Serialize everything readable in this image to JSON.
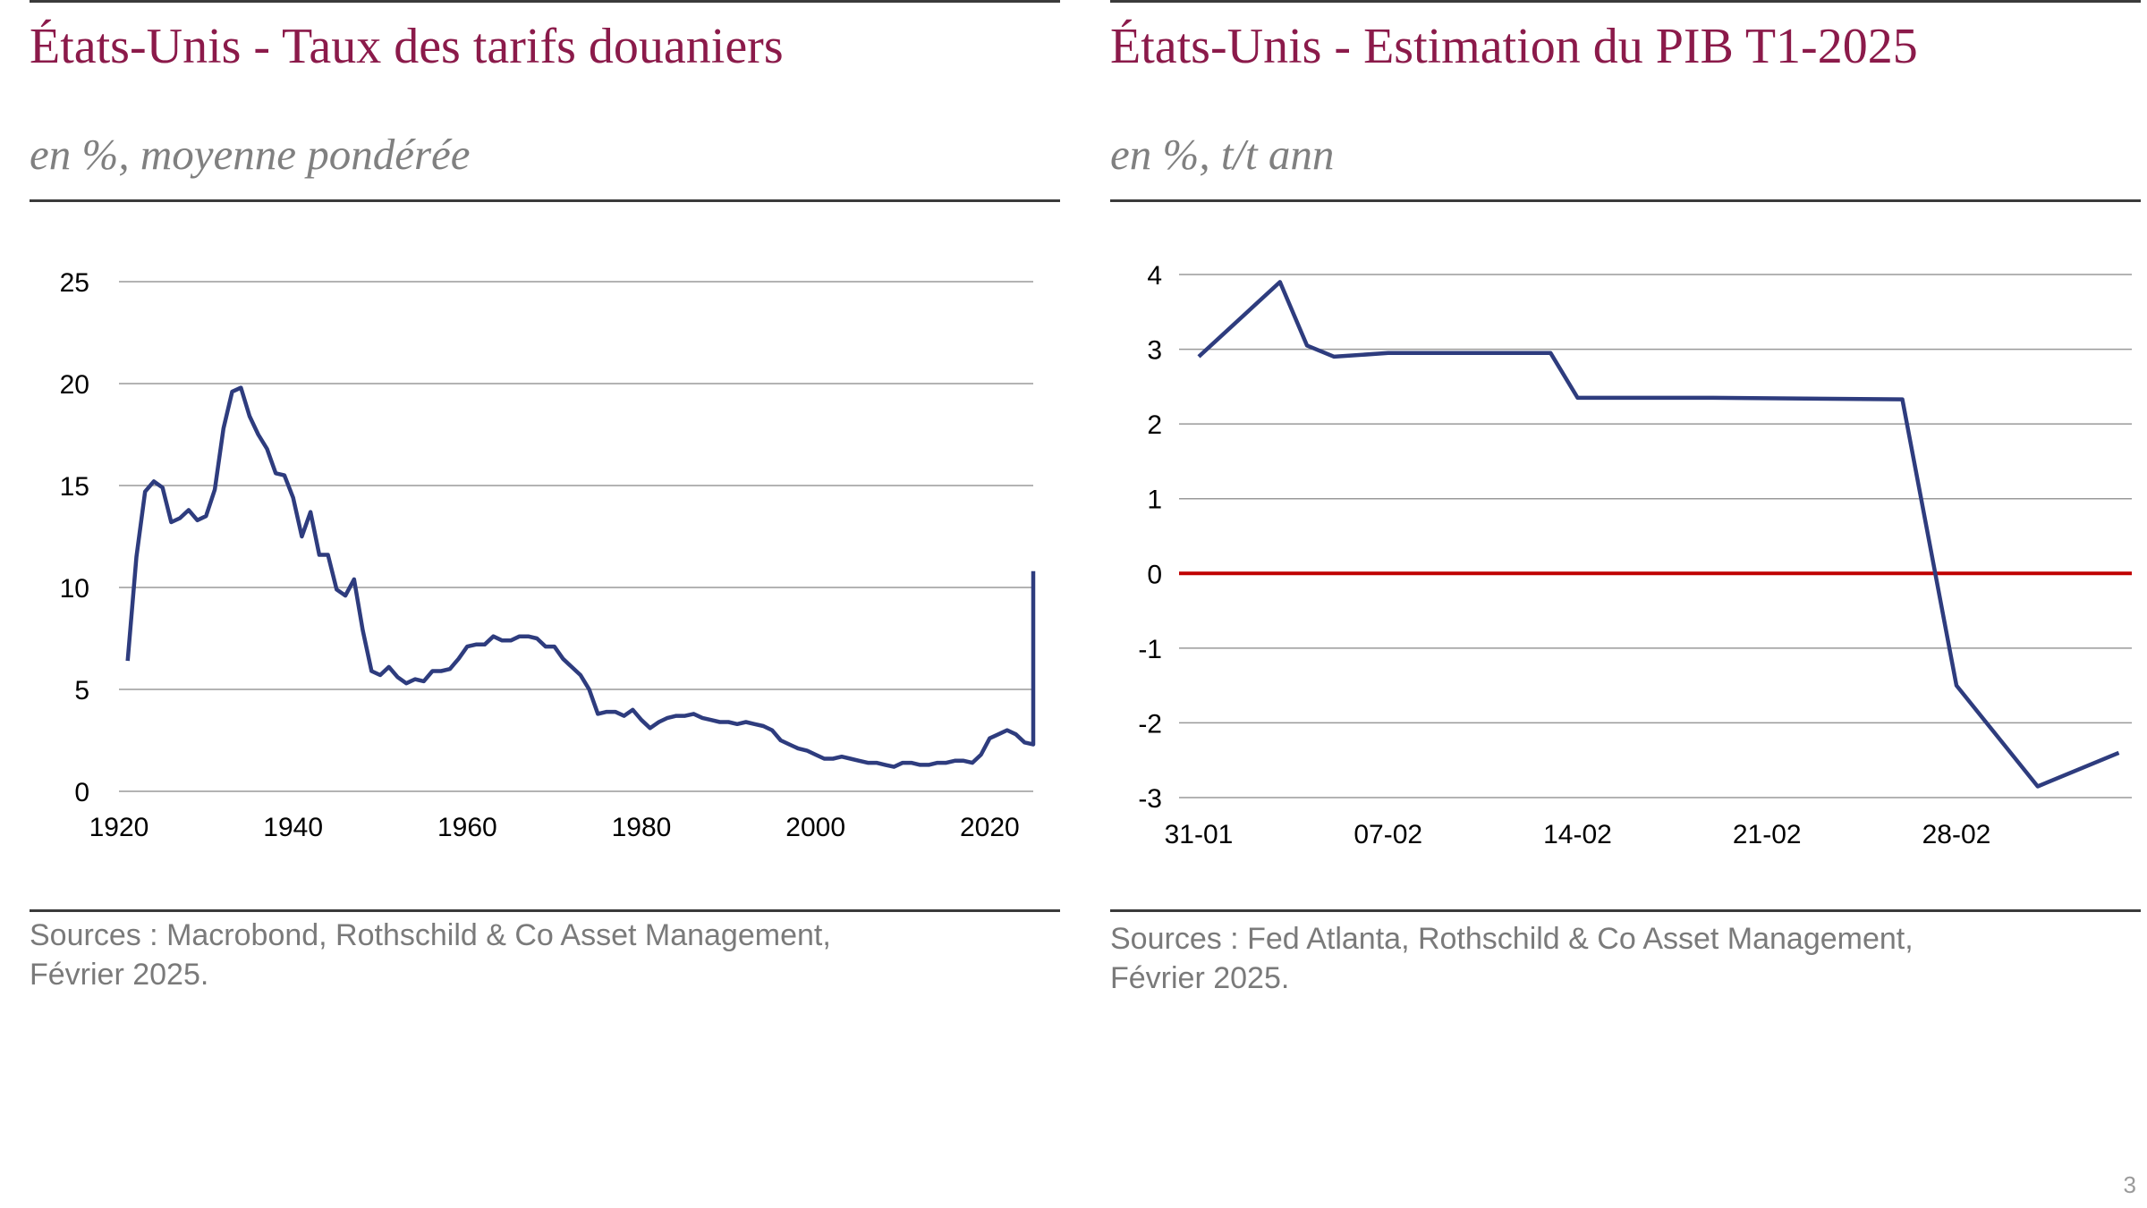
{
  "colors": {
    "title": "#8b1a4a",
    "subtitle": "#808080",
    "series_line": "#2e3c7e",
    "zero_line": "#c00000",
    "grid": "#9a9a9a",
    "rule": "#3b3b3b",
    "sources": "#7a7a7a"
  },
  "left": {
    "title": "États-Unis - Taux des tarifs douaniers",
    "subtitle": "en %, moyenne pondérée",
    "sources": "Sources : Macrobond, Rothschild & Co Asset Management,\n Février 2025."
  },
  "right": {
    "title": "États-Unis - Estimation du PIB T1-2025",
    "subtitle": "en %, t/t ann",
    "sources": "Sources : Fed Atlanta, Rothschild & Co Asset Management,\nFévrier 2025."
  },
  "page_number": "3",
  "chart_data": [
    {
      "type": "line",
      "title": "États-Unis - Taux des tarifs douaniers",
      "subtitle": "en %, moyenne pondérée",
      "xlabel": "",
      "ylabel": "",
      "xlim": [
        1920,
        2025
      ],
      "ylim": [
        0,
        25
      ],
      "x_ticks": [
        1920,
        1940,
        1960,
        1980,
        2000,
        2020
      ],
      "y_ticks": [
        0,
        5,
        10,
        15,
        20,
        25
      ],
      "grid": true,
      "legend": "none",
      "series": [
        {
          "x": [
            1921,
            1922,
            1923,
            1924,
            1925,
            1926,
            1927,
            1928,
            1929,
            1930,
            1931,
            1932,
            1933,
            1934,
            1935,
            1936,
            1937,
            1938,
            1939,
            1940,
            1941,
            1942,
            1943,
            1944,
            1945,
            1946,
            1947,
            1948,
            1949,
            1950,
            1951,
            1952,
            1953,
            1954,
            1955,
            1956,
            1957,
            1958,
            1959,
            1960,
            1961,
            1962,
            1963,
            1964,
            1965,
            1966,
            1967,
            1968,
            1969,
            1970,
            1971,
            1972,
            1973,
            1974,
            1975,
            1976,
            1977,
            1978,
            1979,
            1980,
            1981,
            1982,
            1983,
            1984,
            1985,
            1986,
            1987,
            1988,
            1989,
            1990,
            1991,
            1992,
            1993,
            1994,
            1995,
            1996,
            1997,
            1998,
            1999,
            2000,
            2001,
            2002,
            2003,
            2004,
            2005,
            2006,
            2007,
            2008,
            2009,
            2010,
            2011,
            2012,
            2013,
            2014,
            2015,
            2016,
            2017,
            2018,
            2019,
            2020,
            2021,
            2022,
            2023,
            2024,
            2025,
            2025
          ],
          "y": [
            6.4,
            11.5,
            14.7,
            15.2,
            14.9,
            13.2,
            13.4,
            13.8,
            13.3,
            13.5,
            14.8,
            17.8,
            19.6,
            19.8,
            18.4,
            17.5,
            16.8,
            15.6,
            15.5,
            14.4,
            12.5,
            13.7,
            11.6,
            11.6,
            9.9,
            9.6,
            10.4,
            7.9,
            5.9,
            5.7,
            6.1,
            5.6,
            5.3,
            5.5,
            5.4,
            5.9,
            5.9,
            6.0,
            6.5,
            7.1,
            7.2,
            7.2,
            7.6,
            7.4,
            7.4,
            7.6,
            7.6,
            7.5,
            7.1,
            7.1,
            6.5,
            6.1,
            5.7,
            5.0,
            3.8,
            3.9,
            3.9,
            3.7,
            4.0,
            3.5,
            3.1,
            3.4,
            3.6,
            3.7,
            3.7,
            3.8,
            3.6,
            3.5,
            3.4,
            3.4,
            3.3,
            3.4,
            3.3,
            3.2,
            3.0,
            2.5,
            2.3,
            2.1,
            2.0,
            1.8,
            1.6,
            1.6,
            1.7,
            1.6,
            1.5,
            1.4,
            1.4,
            1.3,
            1.2,
            1.4,
            1.4,
            1.3,
            1.3,
            1.4,
            1.4,
            1.5,
            1.5,
            1.4,
            1.8,
            2.6,
            2.8,
            3.0,
            2.8,
            2.4,
            2.3,
            10.8
          ]
        }
      ]
    },
    {
      "type": "line",
      "title": "États-Unis - Estimation du PIB T1-2025",
      "subtitle": "en %, t/t ann",
      "xlabel": "",
      "ylabel": "",
      "xlim": [
        "31-01",
        "05-03"
      ],
      "ylim": [
        -3,
        4
      ],
      "categories": [
        "31-01",
        "01-02",
        "02-02",
        "03-02",
        "04-02",
        "05-02",
        "06-02",
        "07-02",
        "08-02",
        "09-02",
        "10-02",
        "11-02",
        "12-02",
        "13-02",
        "14-02",
        "15-02",
        "16-02",
        "17-02",
        "18-02",
        "19-02",
        "20-02",
        "21-02",
        "22-02",
        "23-02",
        "24-02",
        "25-02",
        "26-02",
        "27-02",
        "28-02",
        "01-03",
        "02-03",
        "03-03",
        "04-03",
        "05-03"
      ],
      "tick_labels": [
        "31-01",
        "07-02",
        "14-02",
        "21-02",
        "28-02"
      ],
      "y_ticks": [
        -3,
        -2,
        -1,
        0,
        1,
        2,
        3,
        4
      ],
      "grid": true,
      "legend": "none",
      "reference_line": 0,
      "series": [
        {
          "x": [
            "31-01",
            "03-02",
            "04-02",
            "05-02",
            "07-02",
            "13-02",
            "14-02",
            "19-02",
            "26-02",
            "28-02",
            "03-03",
            "06-03"
          ],
          "y": [
            2.9,
            3.9,
            3.05,
            2.9,
            2.95,
            2.95,
            2.35,
            2.35,
            2.33,
            -1.5,
            -2.85,
            -2.4
          ]
        }
      ]
    }
  ]
}
